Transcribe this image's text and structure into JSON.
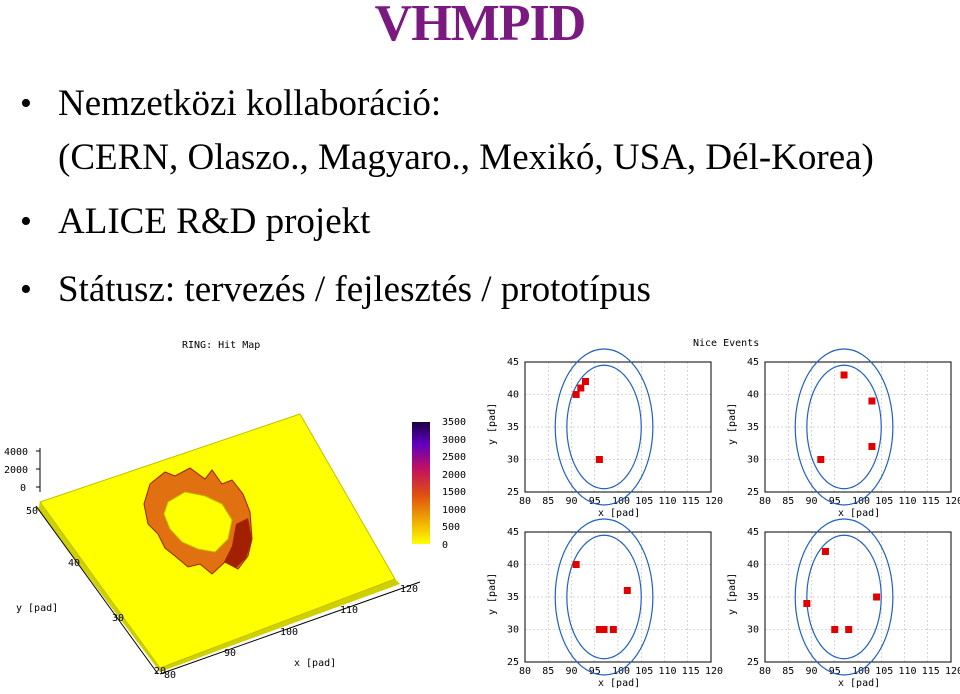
{
  "slide": {
    "title": "VHMPID",
    "bullets": [
      {
        "line1": "Nemzetközi kollaboráció:",
        "line2": "(CERN, Olaszo., Magyaro., Mexikó, USA, Dél-Korea)"
      },
      {
        "line1": "ALICE R&D projekt"
      },
      {
        "line1": "Státusz: tervezés / fejlesztés / prototípus"
      }
    ]
  },
  "hitmap": {
    "title": "RING: Hit Map",
    "z_ticks": [
      "4000",
      "2000",
      "0"
    ],
    "colorbar_ticks": [
      "3500",
      "3000",
      "2500",
      "2000",
      "1500",
      "1000",
      "500",
      "0"
    ],
    "y_axis_label": "y [pad]",
    "y_ticks": [
      "50",
      "40",
      "30",
      "20"
    ],
    "x_axis_label": "x [pad]",
    "x_ticks": [
      "80",
      "90",
      "100",
      "110",
      "120"
    ],
    "colors": {
      "surface": "#ffff00",
      "ring": "#e07010",
      "peak": "#a02000"
    }
  },
  "events": {
    "title": "Nice Events",
    "x_axis_label": "x [pad]",
    "y_axis_label": "y [pad]",
    "x_ticks": [
      "80",
      "85",
      "90",
      "95",
      "100",
      "105",
      "110",
      "115",
      "120"
    ],
    "y_ticks": [
      "45",
      "40",
      "35",
      "30",
      "25"
    ],
    "xlim": [
      80,
      120
    ],
    "ylim": [
      25,
      45
    ],
    "ring": {
      "cx": 97,
      "cy": 35,
      "rx_inner": 8,
      "ry_inner": 9.5,
      "rx_outer": 10.5,
      "ry_outer": 12
    },
    "ring_color": "#2060c0",
    "hit_color": "#e00000",
    "panels": [
      {
        "hits": [
          [
            91,
            40
          ],
          [
            92,
            41
          ],
          [
            93,
            42
          ],
          [
            96,
            30
          ]
        ]
      },
      {
        "hits": [
          [
            97,
            43
          ],
          [
            103,
            39
          ],
          [
            103,
            32
          ],
          [
            92,
            30
          ]
        ]
      },
      {
        "hits": [
          [
            91,
            40
          ],
          [
            102,
            36
          ],
          [
            96,
            30
          ],
          [
            97,
            30
          ],
          [
            99,
            30
          ]
        ]
      },
      {
        "hits": [
          [
            93,
            42
          ],
          [
            89,
            34
          ],
          [
            104,
            35
          ],
          [
            95,
            30
          ],
          [
            98,
            30
          ]
        ]
      }
    ]
  }
}
